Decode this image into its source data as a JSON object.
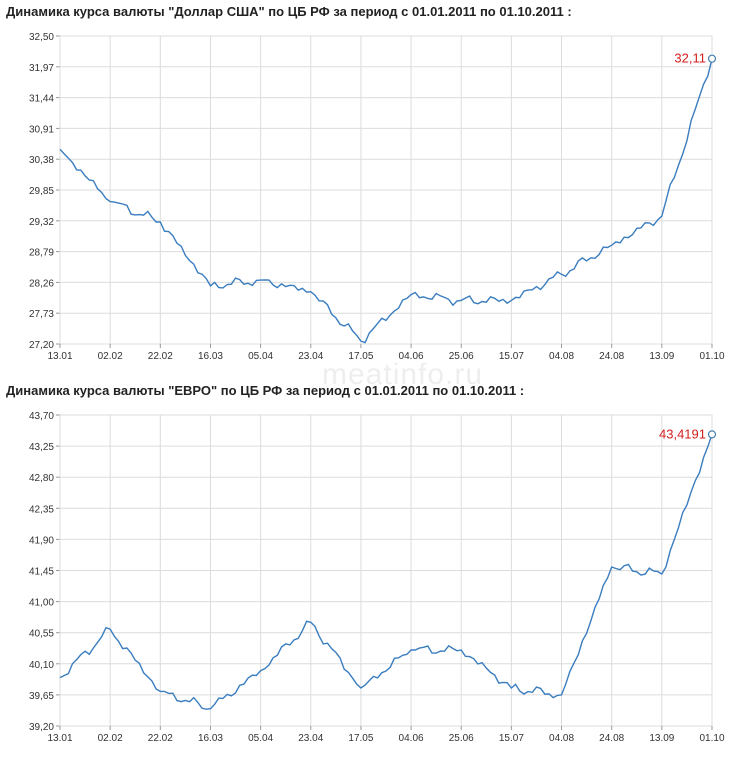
{
  "watermark": "meatinfo.ru",
  "chart_data": [
    {
      "type": "line",
      "title": "Динамика курса валюты \"Доллар США\" по ЦБ РФ за период с 01.01.2011 по 01.10.2011 :",
      "categories": [
        "13.01",
        "02.02",
        "22.02",
        "16.03",
        "05.04",
        "23.04",
        "17.05",
        "04.06",
        "25.06",
        "15.07",
        "04.08",
        "24.08",
        "13.09",
        "01.10"
      ],
      "y_ticks": [
        "32,50",
        "31,97",
        "31,44",
        "30,91",
        "30,38",
        "29,85",
        "29,32",
        "28,79",
        "28,26",
        "27,73",
        "27,20"
      ],
      "ylim": [
        27.2,
        32.5
      ],
      "grid": true,
      "last_value_label": "32,11",
      "series": [
        {
          "color": "#3a7dbf",
          "x": [
            "13.01",
            "02.02",
            "22.02",
            "16.03",
            "05.04",
            "23.04",
            "17.05",
            "04.06",
            "25.06",
            "15.07",
            "04.08",
            "24.08",
            "13.09",
            "01.10"
          ],
          "values": [
            30.55,
            29.65,
            29.3,
            28.2,
            28.3,
            28.1,
            27.25,
            28.05,
            27.95,
            27.95,
            28.4,
            28.9,
            29.4,
            32.11
          ]
        }
      ]
    },
    {
      "type": "line",
      "title": "Динамика курса валюты \"ЕВРО\" по ЦБ РФ за период с 01.01.2011 по 01.10.2011 :",
      "categories": [
        "13.01",
        "02.02",
        "22.02",
        "16.03",
        "05.04",
        "23.04",
        "17.05",
        "04.06",
        "25.06",
        "15.07",
        "04.08",
        "24.08",
        "13.09",
        "01.10"
      ],
      "y_ticks": [
        "43,70",
        "43,25",
        "42,80",
        "42,35",
        "41,90",
        "41,45",
        "41,00",
        "40,55",
        "40,10",
        "39,65",
        "39,20"
      ],
      "ylim": [
        39.2,
        43.7
      ],
      "grid": true,
      "last_value_label": "43,4191",
      "series": [
        {
          "color": "#3a7dbf",
          "x": [
            "13.01",
            "02.02",
            "22.02",
            "16.03",
            "05.04",
            "23.04",
            "17.05",
            "04.06",
            "25.06",
            "15.07",
            "04.08",
            "24.08",
            "13.09",
            "01.10"
          ],
          "values": [
            39.9,
            40.6,
            39.7,
            39.45,
            40.0,
            40.7,
            39.75,
            40.3,
            40.3,
            39.75,
            39.65,
            41.5,
            41.4,
            43.42
          ]
        }
      ]
    }
  ]
}
